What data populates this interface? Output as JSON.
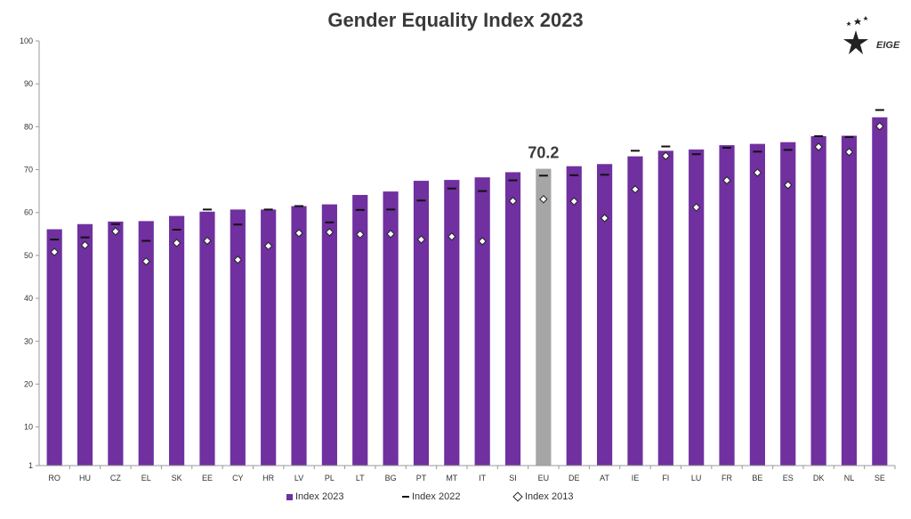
{
  "colors": {
    "index2023": "#7030a0",
    "eu_highlight": "#a6a6a6",
    "index2022": "#111111",
    "index2013_fill": "#ffffff"
  },
  "logo": {
    "text": "EIGE",
    "icon": "star-figure-logo"
  },
  "legend": {
    "index2023": "Index 2023",
    "index2022": "Index 2022",
    "index2013": "Index 2013"
  },
  "chart_data": {
    "type": "bar",
    "title": "Gender Equality Index 2023",
    "highlight_category": "EU",
    "highlight_label": "70.2",
    "categories": [
      "RO",
      "HU",
      "CZ",
      "EL",
      "SK",
      "EE",
      "CY",
      "HR",
      "LV",
      "PL",
      "LT",
      "BG",
      "PT",
      "MT",
      "IT",
      "SI",
      "EU",
      "DE",
      "AT",
      "IE",
      "FI",
      "LU",
      "FR",
      "BE",
      "ES",
      "DK",
      "NL",
      "SE"
    ],
    "series": [
      {
        "name": "Index 2023",
        "values": [
          56.1,
          57.3,
          57.9,
          58.0,
          59.2,
          60.2,
          60.7,
          60.7,
          61.5,
          61.9,
          64.1,
          64.9,
          67.4,
          67.6,
          68.2,
          69.4,
          70.2,
          70.8,
          71.3,
          73.1,
          74.4,
          74.7,
          75.7,
          76.0,
          76.4,
          77.8,
          77.9,
          82.2
        ]
      },
      {
        "name": "Index 2022",
        "values": [
          53.7,
          54.2,
          57.3,
          53.4,
          56.0,
          60.7,
          57.2,
          60.7,
          61.5,
          57.7,
          60.6,
          60.7,
          62.8,
          65.6,
          65.0,
          67.5,
          68.6,
          68.7,
          68.8,
          74.4,
          75.4,
          73.6,
          75.1,
          74.2,
          74.6,
          77.8,
          77.6,
          83.9
        ]
      },
      {
        "name": "Index 2013",
        "values": [
          50.8,
          52.4,
          55.6,
          48.6,
          52.9,
          53.4,
          49.0,
          52.2,
          55.2,
          55.4,
          54.9,
          55.0,
          53.7,
          54.4,
          53.3,
          62.7,
          63.1,
          62.6,
          58.7,
          65.4,
          73.2,
          61.2,
          67.5,
          69.3,
          66.4,
          75.3,
          74.1,
          80.1
        ]
      }
    ],
    "y_ticks": [
      "1",
      "10",
      "20",
      "30",
      "40",
      "50",
      "60",
      "70",
      "80",
      "90",
      "100"
    ],
    "ylim": [
      1,
      100
    ],
    "grid": false,
    "legend_position": "bottom"
  }
}
